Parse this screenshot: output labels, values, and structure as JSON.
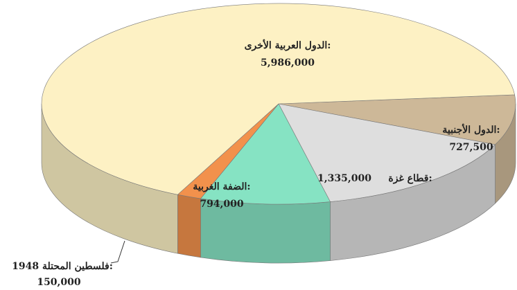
{
  "chart_data": {
    "type": "pie3d",
    "categories": [
      "الدول الأجنبية:",
      "قطاع غزة:",
      "الضفة الغربية:",
      "فلسطين المحتلة 1948:",
      "الدول العربية الأخرى:"
    ],
    "values": [
      727500,
      1335000,
      794000,
      150000,
      5986000
    ],
    "value_labels": [
      "727,500",
      "1,335,000",
      "794,000",
      "150,000",
      "5,986,000"
    ],
    "colors": [
      "#cdb898",
      "#dedede",
      "#86e3c3",
      "#f2914c",
      "#fdf1c4"
    ]
  }
}
